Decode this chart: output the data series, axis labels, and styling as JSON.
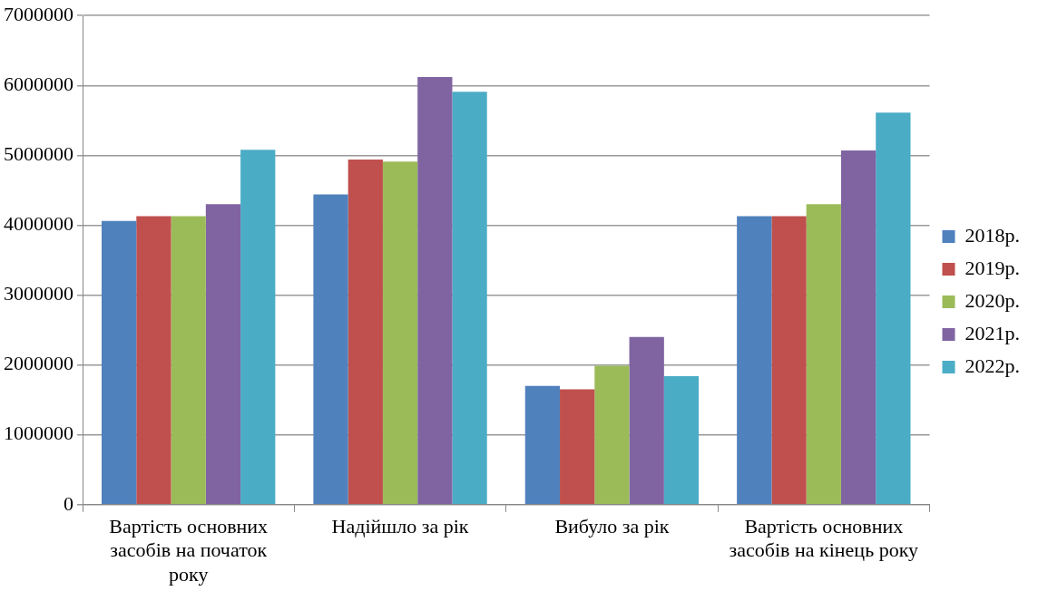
{
  "chart_data": {
    "type": "bar",
    "categories": [
      "Вартість основних засобів на початок року",
      "Надійшло за рік",
      "Вибуло за рік",
      "Вартість основних засобів на кінець року"
    ],
    "series": [
      {
        "name": "2018р.",
        "color": "#4f81bd",
        "values": [
          4060000,
          4440000,
          1700000,
          4130000
        ]
      },
      {
        "name": "2019р.",
        "color": "#c0504d",
        "values": [
          4130000,
          4940000,
          1650000,
          4130000
        ]
      },
      {
        "name": "2020р.",
        "color": "#9bbb59",
        "values": [
          4130000,
          4910000,
          1990000,
          4300000
        ]
      },
      {
        "name": "2021р.",
        "color": "#8064a2",
        "values": [
          4300000,
          6120000,
          2400000,
          5070000
        ]
      },
      {
        "name": "2022р.",
        "color": "#4bacc6",
        "values": [
          5080000,
          5910000,
          1840000,
          5610000
        ]
      }
    ],
    "ylim": [
      0,
      7000000
    ],
    "yticks": [
      0,
      1000000,
      2000000,
      3000000,
      4000000,
      5000000,
      6000000,
      7000000
    ],
    "grid": "y",
    "legend": "right"
  }
}
